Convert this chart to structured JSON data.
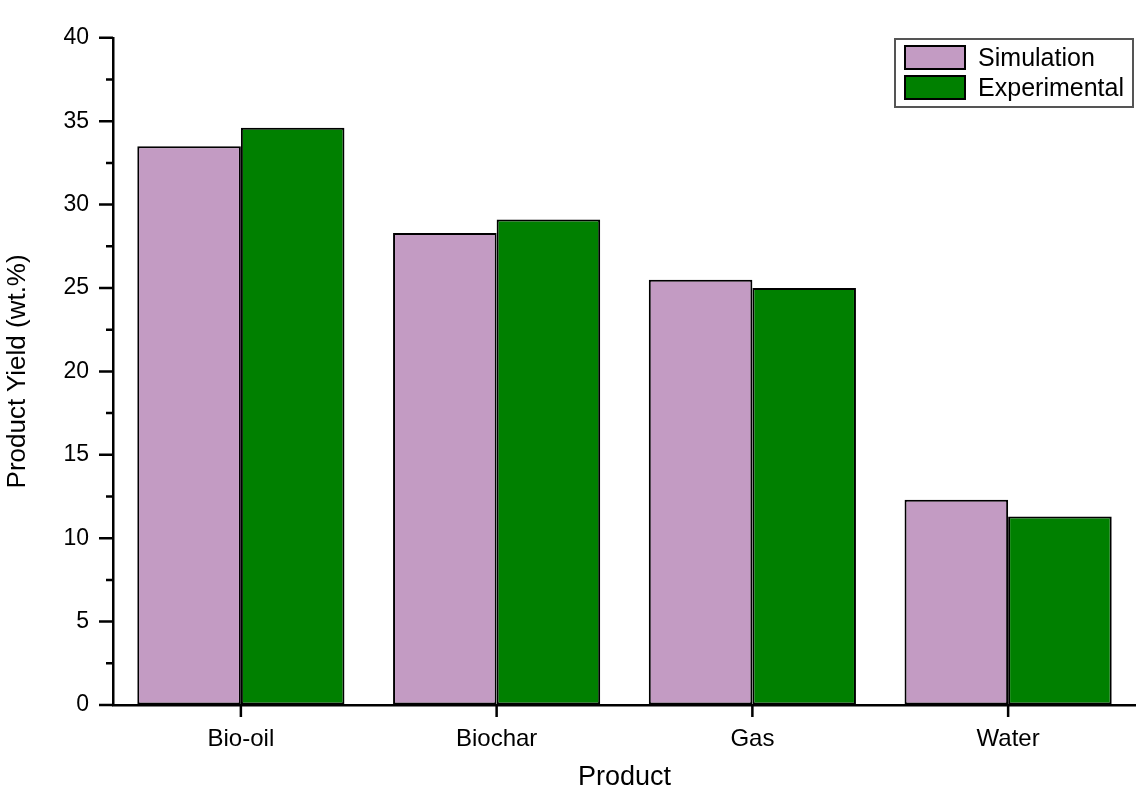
{
  "chart_data": {
    "type": "bar",
    "xlabel": "Product",
    "ylabel": "Product Yield (wt.%)",
    "categories": [
      "Bio-oil",
      "Biochar",
      "Gas",
      "Water"
    ],
    "series": [
      {
        "name": "Simulation",
        "color": "#c39bc3",
        "values": [
          33.5,
          28.3,
          25.5,
          12.3
        ]
      },
      {
        "name": "Experimental",
        "color": "#008000",
        "values": [
          34.6,
          29.1,
          25.0,
          11.3
        ]
      }
    ],
    "ylim": [
      0,
      40
    ],
    "yticks": [
      0,
      {
        "value": 2.5,
        "label": null
      },
      5,
      {
        "value": 7.5,
        "label": null
      },
      10,
      {
        "value": 12.5,
        "label": null
      },
      15,
      {
        "value": 17.5,
        "label": null
      },
      20,
      {
        "value": 22.5,
        "label": null
      },
      25,
      {
        "value": 27.5,
        "label": null
      },
      30,
      {
        "value": 32.5,
        "label": null
      },
      35,
      {
        "value": 37.5,
        "label": null
      },
      40
    ],
    "legend": "top right"
  }
}
